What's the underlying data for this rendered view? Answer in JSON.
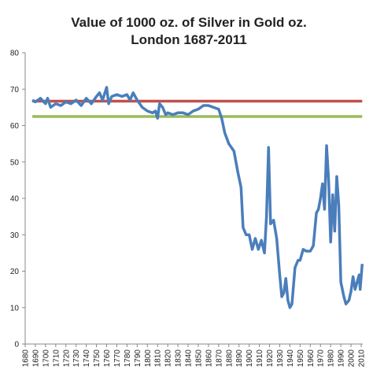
{
  "chart_data": {
    "type": "line",
    "title": "Value of 1000 oz. of Silver in Gold oz.",
    "subtitle": "London 1687-2011",
    "xlim": [
      1680,
      2010
    ],
    "xticks": [
      1680,
      1690,
      1700,
      1710,
      1720,
      1730,
      1740,
      1750,
      1760,
      1770,
      1780,
      1790,
      1800,
      1810,
      1820,
      1830,
      1840,
      1850,
      1860,
      1870,
      1880,
      1890,
      1900,
      1910,
      1920,
      1930,
      1940,
      1950,
      1960,
      1970,
      1980,
      1990,
      2000,
      2010
    ],
    "ylim": [
      0,
      80
    ],
    "yticks": [
      0,
      10,
      20,
      30,
      40,
      50,
      60,
      70,
      80
    ],
    "series": [
      {
        "color": "#4a7ebb",
        "x": [
          1687,
          1690,
          1695,
          1700,
          1702,
          1705,
          1710,
          1715,
          1720,
          1725,
          1730,
          1735,
          1740,
          1745,
          1750,
          1753,
          1756,
          1760,
          1762,
          1765,
          1770,
          1775,
          1780,
          1783,
          1786,
          1790,
          1795,
          1800,
          1805,
          1808,
          1810,
          1812,
          1815,
          1818,
          1820,
          1825,
          1830,
          1835,
          1840,
          1845,
          1850,
          1855,
          1860,
          1865,
          1870,
          1873,
          1876,
          1880,
          1885,
          1889,
          1892,
          1894,
          1897,
          1900,
          1903,
          1906,
          1909,
          1912,
          1915,
          1917,
          1919,
          1921,
          1924,
          1927,
          1930,
          1932,
          1934,
          1936,
          1938,
          1940,
          1942,
          1945,
          1948,
          1950,
          1953,
          1956,
          1960,
          1963,
          1966,
          1968,
          1970,
          1972,
          1974,
          1976,
          1978,
          1980,
          1982,
          1984,
          1986,
          1988,
          1990,
          1993,
          1995,
          1998,
          2000,
          2002,
          2004,
          2006,
          2008,
          2009,
          2011
        ],
        "values": [
          67,
          66.5,
          67.5,
          66,
          67.5,
          65,
          66,
          65.5,
          66.5,
          66,
          67,
          65.5,
          67.5,
          66,
          68,
          69,
          67,
          70.5,
          66,
          68,
          68.5,
          68,
          68.5,
          67,
          69,
          67,
          65,
          64,
          63.5,
          64,
          62,
          66,
          65,
          63,
          63.5,
          63,
          63.5,
          63.5,
          63,
          64,
          64.5,
          65.5,
          65.5,
          65,
          64.5,
          62,
          58,
          55,
          53,
          47,
          43,
          32,
          30,
          30,
          26,
          29,
          26,
          28.5,
          25,
          35,
          54,
          33,
          34,
          29,
          19,
          13,
          14,
          18,
          12,
          10,
          11,
          21,
          23,
          23,
          26,
          25.5,
          25.5,
          27,
          36,
          37,
          40,
          44,
          37,
          54.5,
          45,
          28,
          41,
          31,
          46,
          38,
          17,
          13,
          11,
          12,
          14.5,
          18.5,
          15,
          17,
          19,
          15,
          22
        ]
      },
      {
        "color": "#c0504d",
        "x": [
          1687,
          2011
        ],
        "values": [
          66.7,
          66.7
        ]
      },
      {
        "color": "#9bbb59",
        "x": [
          1687,
          2011
        ],
        "values": [
          62.5,
          62.5
        ]
      }
    ]
  }
}
